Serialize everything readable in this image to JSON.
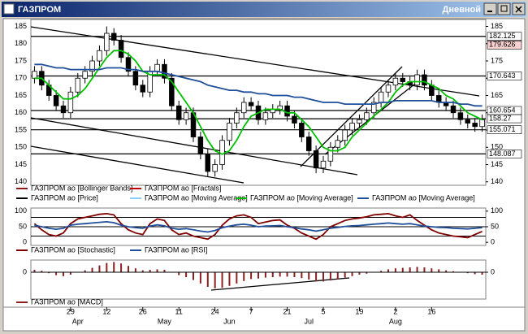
{
  "window": {
    "title": "ГАЗПРОМ",
    "mode": "Дневной"
  },
  "chart_data": [
    {
      "type": "candlestick",
      "categories": [
        null,
        null,
        null,
        null,
        null,
        "29",
        null,
        null,
        null,
        null,
        "12",
        null,
        null,
        null,
        null,
        "26",
        null,
        null,
        null,
        null,
        "11",
        null,
        null,
        null,
        null,
        "24",
        null,
        null,
        null,
        null,
        "7",
        null,
        null,
        null,
        null,
        "21",
        null,
        null,
        null,
        null,
        "5",
        null,
        null,
        null,
        null,
        "19",
        null,
        null,
        null,
        null,
        "2",
        null,
        null,
        null,
        null,
        "16",
        null,
        null,
        null,
        null,
        null,
        null,
        null
      ],
      "months": [
        null,
        null,
        null,
        null,
        null,
        null,
        "Apr",
        null,
        null,
        null,
        null,
        null,
        null,
        null,
        null,
        null,
        null,
        null,
        "May",
        null,
        null,
        null,
        null,
        null,
        null,
        null,
        null,
        "Jun",
        null,
        null,
        null,
        null,
        null,
        null,
        null,
        null,
        null,
        null,
        "Jul",
        null,
        null,
        null,
        null,
        null,
        null,
        null,
        null,
        null,
        null,
        null,
        "Aug",
        null,
        null,
        null,
        null,
        null,
        null,
        null,
        null,
        null,
        null,
        null,
        null
      ],
      "open": [
        170,
        172,
        168,
        165,
        162,
        160,
        166,
        170,
        172,
        175,
        178,
        183,
        181,
        176,
        172,
        168,
        166,
        172,
        174,
        170,
        162,
        158,
        160,
        153,
        148,
        143,
        145,
        152,
        157,
        160,
        163,
        162,
        158,
        160,
        161,
        162,
        159,
        157,
        153,
        149,
        144,
        146,
        150,
        152,
        155,
        157,
        158,
        160,
        163,
        166,
        168,
        170,
        169,
        168,
        171,
        168,
        165,
        163,
        162,
        160,
        158,
        157,
        156
      ],
      "high": [
        173.5,
        173.5,
        169.5,
        166.5,
        163.5,
        167.5,
        171.5,
        173.5,
        176.5,
        179.5,
        185,
        184.5,
        182.5,
        177.5,
        173.5,
        169.5,
        173.5,
        175.5,
        175.5,
        171.5,
        163.5,
        161.5,
        161.5,
        154.5,
        149.5,
        146.5,
        153.5,
        158.5,
        161.5,
        164.5,
        164.5,
        163.5,
        161.5,
        162.5,
        163.5,
        163.5,
        160.5,
        158.5,
        154.5,
        150.5,
        147.5,
        151.5,
        153.5,
        156.5,
        158.5,
        159.5,
        161.5,
        164.5,
        167.5,
        169.5,
        171.5,
        171.5,
        170.5,
        172.5,
        172.5,
        169.5,
        166.5,
        164.5,
        163.5,
        161.5,
        159.5,
        158.5,
        159.5
      ],
      "low": [
        168.5,
        166.5,
        163.5,
        160.5,
        158.5,
        158.5,
        164.5,
        168.5,
        170.5,
        173.5,
        176.5,
        179.5,
        174.5,
        170.5,
        166.5,
        164.5,
        164.5,
        170.5,
        168.5,
        160.5,
        156.5,
        156.5,
        151.5,
        146.5,
        141.5,
        141.5,
        143.5,
        150.5,
        155.5,
        158.5,
        160.5,
        156.5,
        156.5,
        158.5,
        159.5,
        157.5,
        155.5,
        151.5,
        147.5,
        142.5,
        142.5,
        144.5,
        148.5,
        150.5,
        153.5,
        155.5,
        156.5,
        158.5,
        161.5,
        164.5,
        166.5,
        167.5,
        166.5,
        166.5,
        166.5,
        163.5,
        161.5,
        160.5,
        158.5,
        156.5,
        155.5,
        154.5,
        154.5
      ],
      "close": [
        172,
        168,
        165,
        162,
        160,
        166,
        170,
        172,
        175,
        178,
        183,
        181,
        176,
        172,
        168,
        166,
        172,
        174,
        170,
        162,
        158,
        160,
        153,
        148,
        143,
        145,
        152,
        157,
        160,
        163,
        162,
        158,
        160,
        161,
        162,
        159,
        157,
        153,
        149,
        144,
        146,
        150,
        152,
        155,
        157,
        158,
        160,
        163,
        166,
        168,
        170,
        169,
        168,
        171,
        168,
        165,
        163,
        162,
        160,
        158,
        157,
        156,
        158
      ],
      "series": [
        {
          "name": "ГАЗПРОМ ao [Bollinger Bands]",
          "color": "#8b1a1a"
        },
        {
          "name": "ГАЗПРОМ ao [Fractals]",
          "color": "#c00000"
        },
        {
          "name": "ГАЗПРОМ ao [Price]",
          "color": "#000000"
        },
        {
          "name": "ГАЗПРОМ ao [Moving Average]",
          "color": "#87cefa"
        },
        {
          "name": "ГАЗПРОМ ao [Moving Average]",
          "color": "#00c000",
          "values": [
            170,
            170,
            168,
            166,
            164,
            164,
            165,
            167,
            170,
            173,
            176,
            178,
            178,
            177,
            175,
            172,
            171,
            171,
            171,
            169,
            166,
            163,
            160,
            156,
            152,
            149,
            148,
            149,
            152,
            156,
            159,
            160,
            161,
            161,
            161,
            160,
            160,
            158,
            156,
            153,
            150,
            149,
            149,
            150,
            153,
            155,
            157,
            159,
            161,
            163,
            166,
            168,
            169,
            169,
            169,
            168,
            167,
            165,
            164,
            162,
            160,
            159,
            158
          ]
        },
        {
          "name": "ГАЗПРОМ ao [Moving Average]",
          "color": "#1f4e9a",
          "values": [
            174,
            174,
            173.5,
            173,
            173,
            172.5,
            172.5,
            172.5,
            172.5,
            172.5,
            173,
            173,
            173,
            172.5,
            172.5,
            172,
            172,
            172,
            171.5,
            171,
            170.5,
            170,
            169.5,
            169,
            168,
            167.5,
            167,
            166.5,
            166.5,
            166,
            166,
            165.5,
            165.5,
            165,
            165,
            165,
            164.5,
            164.5,
            164,
            163.5,
            163,
            163,
            163,
            162.5,
            162.5,
            162.5,
            162.5,
            162.5,
            163,
            163,
            163.5,
            163.5,
            163.5,
            163.5,
            163.5,
            163.5,
            163,
            163,
            163,
            162.5,
            162.5,
            162,
            162
          ]
        }
      ],
      "levels": [
        182.125,
        179.626,
        170.643,
        160.654,
        158.27,
        155.071,
        148.087
      ],
      "level_colors": [
        "#000000",
        "#c00000",
        "#000000",
        "#000000",
        "#000000",
        "#000000",
        "#000000"
      ],
      "ylim": [
        139,
        187
      ],
      "yticks": [
        140,
        145,
        150,
        155,
        160,
        165,
        170,
        175,
        180,
        185
      ]
    },
    {
      "type": "line",
      "series": [
        {
          "name": "ГАЗПРОМ ao [Stochastic]",
          "color": "#800000",
          "values": [
            60,
            40,
            25,
            20,
            30,
            60,
            75,
            80,
            85,
            90,
            92,
            88,
            60,
            40,
            30,
            25,
            60,
            75,
            70,
            40,
            25,
            30,
            20,
            15,
            10,
            25,
            55,
            75,
            85,
            88,
            80,
            60,
            65,
            70,
            72,
            55,
            45,
            30,
            20,
            10,
            25,
            50,
            60,
            70,
            75,
            78,
            82,
            88,
            90,
            92,
            85,
            80,
            88,
            70,
            55,
            40,
            30,
            25,
            20,
            18,
            15,
            25,
            35
          ]
        },
        {
          "name": "ГАЗПРОМ ao [RSI]",
          "color": "#1f4e9a",
          "values": [
            55,
            50,
            45,
            42,
            45,
            55,
            58,
            60,
            62,
            64,
            66,
            63,
            55,
            50,
            47,
            45,
            52,
            56,
            53,
            45,
            42,
            44,
            40,
            36,
            33,
            38,
            47,
            52,
            56,
            58,
            55,
            50,
            52,
            53,
            54,
            50,
            47,
            43,
            40,
            36,
            40,
            45,
            48,
            51,
            53,
            54,
            56,
            58,
            60,
            62,
            60,
            58,
            60,
            56,
            52,
            50,
            48,
            47,
            45,
            44,
            43,
            45,
            47
          ]
        }
      ],
      "hlines": [
        20,
        50,
        80
      ],
      "ylim": [
        -10,
        110
      ],
      "yticks": [
        0,
        50,
        100
      ]
    },
    {
      "type": "bar",
      "series": [
        {
          "name": "ГАЗПРОМ ao [MACD]",
          "color": "#8b2020",
          "values": [
            0.5,
            0.3,
            -0.2,
            -0.6,
            -0.8,
            -0.5,
            0,
            0.4,
            0.9,
            1.4,
            1.9,
            2.1,
            1.8,
            1.3,
            0.8,
            0.4,
            0.5,
            0.6,
            0.5,
            0,
            -0.6,
            -1,
            -1.6,
            -2.3,
            -3,
            -3.3,
            -3.2,
            -2.8,
            -2.3,
            -1.8,
            -1.4,
            -1.3,
            -1.1,
            -1,
            -0.9,
            -0.9,
            -1,
            -1.2,
            -1.5,
            -1.9,
            -1.9,
            -1.7,
            -1.4,
            -1.1,
            -0.8,
            -0.5,
            -0.3,
            0,
            0.3,
            0.6,
            0.8,
            0.9,
            1,
            1.1,
            1,
            0.8,
            0.6,
            0.4,
            0.2,
            0,
            -0.2,
            -0.4,
            -0.5
          ]
        }
      ],
      "ylim": [
        -5.5,
        2.5
      ],
      "yticks": [
        0
      ]
    }
  ]
}
